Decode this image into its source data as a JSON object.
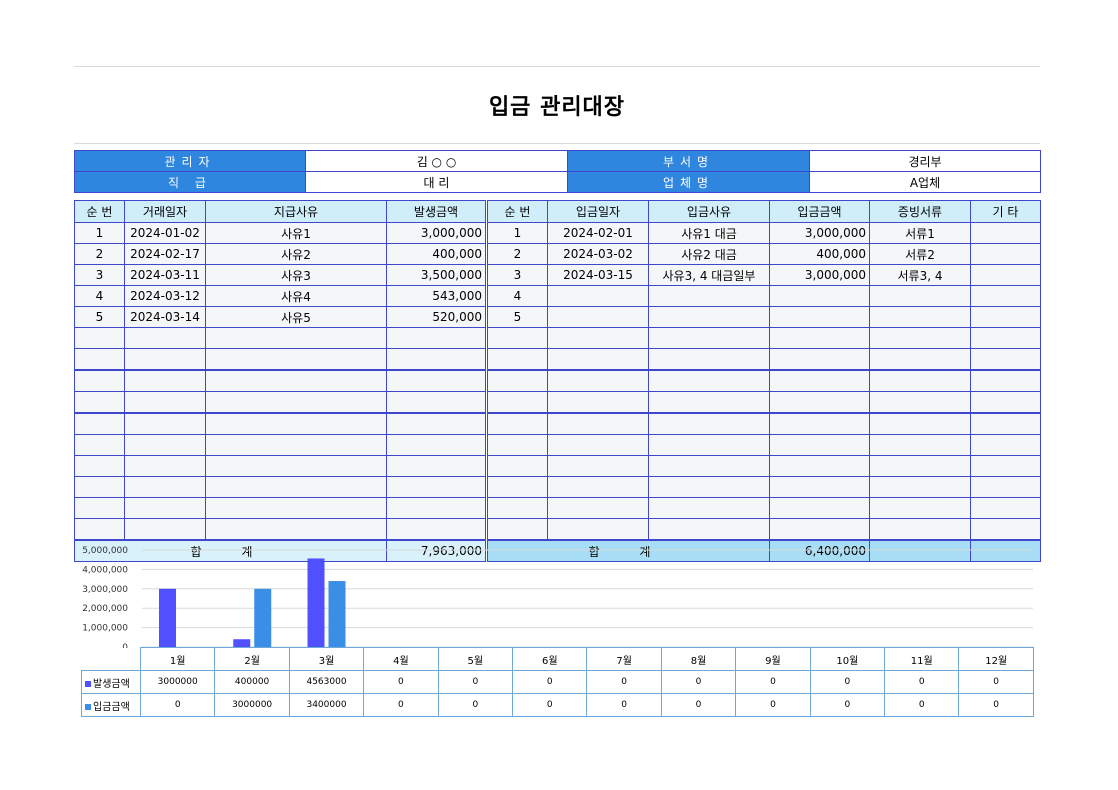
{
  "title": "입금 관리대장",
  "info": {
    "manager_label": "관리자",
    "manager_value": "김 ○ ○",
    "dept_label": "부서명",
    "dept_value": "경리부",
    "rank_label": "직 급",
    "rank_value": "대 리",
    "company_label": "업체명",
    "company_value": "A업체"
  },
  "left_headers": [
    "순 번",
    "거래일자",
    "지급사유",
    "발생금액"
  ],
  "right_headers": [
    "순 번",
    "입금일자",
    "입금사유",
    "입금금액",
    "증빙서류",
    "기 타"
  ],
  "rows": [
    {
      "l_no": "1",
      "l_date": "2024-01-02",
      "l_reason": "사유1",
      "l_amount": "3,000,000",
      "r_no": "1",
      "r_date": "2024-02-01",
      "r_reason": "사유1 대금",
      "r_amount": "3,000,000",
      "r_doc": "서류1",
      "r_etc": ""
    },
    {
      "l_no": "2",
      "l_date": "2024-02-17",
      "l_reason": "사유2",
      "l_amount": "400,000",
      "r_no": "2",
      "r_date": "2024-03-02",
      "r_reason": "사유2 대금",
      "r_amount": "400,000",
      "r_doc": "서류2",
      "r_etc": ""
    },
    {
      "l_no": "3",
      "l_date": "2024-03-11",
      "l_reason": "사유3",
      "l_amount": "3,500,000",
      "r_no": "3",
      "r_date": "2024-03-15",
      "r_reason": "사유3, 4 대금일부",
      "r_amount": "3,000,000",
      "r_doc": "서류3, 4",
      "r_etc": ""
    },
    {
      "l_no": "4",
      "l_date": "2024-03-12",
      "l_reason": "사유4",
      "l_amount": "543,000",
      "r_no": "4",
      "r_date": "",
      "r_reason": "",
      "r_amount": "",
      "r_doc": "",
      "r_etc": ""
    },
    {
      "l_no": "5",
      "l_date": "2024-03-14",
      "l_reason": "사유5",
      "l_amount": "520,000",
      "r_no": "5",
      "r_date": "",
      "r_reason": "",
      "r_amount": "",
      "r_doc": "",
      "r_etc": ""
    },
    {
      "l_no": "",
      "l_date": "",
      "l_reason": "",
      "l_amount": "",
      "r_no": "",
      "r_date": "",
      "r_reason": "",
      "r_amount": "",
      "r_doc": "",
      "r_etc": ""
    },
    {
      "l_no": "",
      "l_date": "",
      "l_reason": "",
      "l_amount": "",
      "r_no": "",
      "r_date": "",
      "r_reason": "",
      "r_amount": "",
      "r_doc": "",
      "r_etc": ""
    },
    {
      "l_no": "",
      "l_date": "",
      "l_reason": "",
      "l_amount": "",
      "r_no": "",
      "r_date": "",
      "r_reason": "",
      "r_amount": "",
      "r_doc": "",
      "r_etc": ""
    },
    {
      "l_no": "",
      "l_date": "",
      "l_reason": "",
      "l_amount": "",
      "r_no": "",
      "r_date": "",
      "r_reason": "",
      "r_amount": "",
      "r_doc": "",
      "r_etc": ""
    },
    {
      "l_no": "",
      "l_date": "",
      "l_reason": "",
      "l_amount": "",
      "r_no": "",
      "r_date": "",
      "r_reason": "",
      "r_amount": "",
      "r_doc": "",
      "r_etc": ""
    },
    {
      "l_no": "",
      "l_date": "",
      "l_reason": "",
      "l_amount": "",
      "r_no": "",
      "r_date": "",
      "r_reason": "",
      "r_amount": "",
      "r_doc": "",
      "r_etc": ""
    },
    {
      "l_no": "",
      "l_date": "",
      "l_reason": "",
      "l_amount": "",
      "r_no": "",
      "r_date": "",
      "r_reason": "",
      "r_amount": "",
      "r_doc": "",
      "r_etc": ""
    },
    {
      "l_no": "",
      "l_date": "",
      "l_reason": "",
      "l_amount": "",
      "r_no": "",
      "r_date": "",
      "r_reason": "",
      "r_amount": "",
      "r_doc": "",
      "r_etc": ""
    },
    {
      "l_no": "",
      "l_date": "",
      "l_reason": "",
      "l_amount": "",
      "r_no": "",
      "r_date": "",
      "r_reason": "",
      "r_amount": "",
      "r_doc": "",
      "r_etc": ""
    },
    {
      "l_no": "",
      "l_date": "",
      "l_reason": "",
      "l_amount": "",
      "r_no": "",
      "r_date": "",
      "r_reason": "",
      "r_amount": "",
      "r_doc": "",
      "r_etc": ""
    }
  ],
  "totals": {
    "left_label": "합 계",
    "left_amount": "7,963,000",
    "right_label": "합 계",
    "right_amount": "6,400,000"
  },
  "colors": {
    "header_blue": "#2e86de",
    "border": "#3f48cc",
    "series_occur": "#5050ff",
    "series_deposit": "#3a8ee6"
  },
  "chart_data": {
    "type": "bar",
    "categories": [
      "1월",
      "2월",
      "3월",
      "4월",
      "5월",
      "6월",
      "7월",
      "8월",
      "9월",
      "10월",
      "11월",
      "12월"
    ],
    "series": [
      {
        "name": "발생금액",
        "values": [
          3000000,
          400000,
          4563000,
          0,
          0,
          0,
          0,
          0,
          0,
          0,
          0,
          0
        ]
      },
      {
        "name": "입금금액",
        "values": [
          0,
          3000000,
          3400000,
          0,
          0,
          0,
          0,
          0,
          0,
          0,
          0,
          0
        ]
      }
    ],
    "y_ticks": [
      "5,000,000",
      "4,000,000",
      "3,000,000",
      "2,000,000",
      "1,000,000",
      "0"
    ],
    "ylim": [
      0,
      5000000
    ],
    "grid": true,
    "legend": "data-table"
  }
}
